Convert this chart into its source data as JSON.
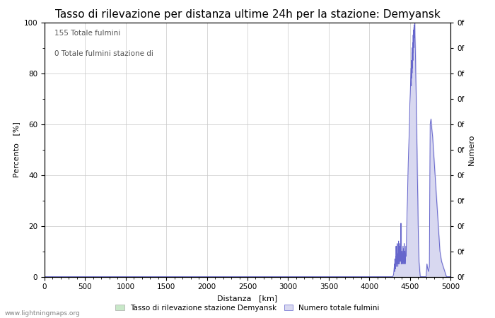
{
  "title": "Tasso di rilevazione per distanza ultime 24h per la stazione: Demyansk",
  "xlabel": "Distanza   [km]",
  "ylabel_left": "Percento   [%]",
  "ylabel_right": "Numero",
  "annotation_line1": "155 Totale fulmini",
  "annotation_line2": "0 Totale fulmini stazione di",
  "xlim": [
    0,
    5000
  ],
  "ylim_left": [
    0,
    100
  ],
  "xticks": [
    0,
    500,
    1000,
    1500,
    2000,
    2500,
    3000,
    3500,
    4000,
    4500,
    5000
  ],
  "yticks_left": [
    0,
    20,
    40,
    60,
    80,
    100
  ],
  "right_axis_labels": [
    "0f",
    "0f",
    "0f",
    "0f",
    "0f",
    "0f",
    "0f",
    "0f",
    "0f",
    "0f",
    "0f"
  ],
  "right_axis_positions": [
    0,
    10,
    20,
    30,
    40,
    50,
    60,
    70,
    80,
    90,
    100
  ],
  "watermark": "www.lightningmaps.org",
  "legend_green_label": "Tasso di rilevazione stazione Demyansk",
  "legend_blue_label": "Numero totale fulmini",
  "bg_color": "#ffffff",
  "grid_color": "#c8c8c8",
  "line_color": "#6666cc",
  "fill_color": "#d8d8f0",
  "green_fill_color": "#c8e8c8",
  "title_fontsize": 11,
  "label_fontsize": 8,
  "tick_fontsize": 7.5,
  "lightning_data_x": [
    0,
    4290,
    4290,
    4300,
    4305,
    4310,
    4312,
    4315,
    4318,
    4320,
    4322,
    4325,
    4328,
    4330,
    4332,
    4335,
    4338,
    4340,
    4342,
    4345,
    4348,
    4350,
    4352,
    4355,
    4358,
    4360,
    4362,
    4365,
    4368,
    4370,
    4372,
    4375,
    4378,
    4380,
    4382,
    4385,
    4388,
    4390,
    4392,
    4395,
    4398,
    4400,
    4402,
    4405,
    4408,
    4410,
    4412,
    4415,
    4418,
    4420,
    4422,
    4425,
    4428,
    4430,
    4432,
    4435,
    4438,
    4440,
    4442,
    4445,
    4450,
    4455,
    4460,
    4465,
    4470,
    4475,
    4480,
    4485,
    4490,
    4495,
    4500,
    4505,
    4510,
    4515,
    4518,
    4520,
    4522,
    4525,
    4528,
    4530,
    4532,
    4535,
    4538,
    4540,
    4542,
    4545,
    4548,
    4550,
    4552,
    4555,
    4558,
    4560,
    4562,
    4565,
    4568,
    4570,
    4572,
    4575,
    4578,
    4580,
    4582,
    4585,
    4588,
    4590,
    4592,
    4595,
    4598,
    4600,
    4602,
    4605,
    4608,
    4610,
    4612,
    4615,
    4618,
    4620,
    4622,
    4625,
    4628,
    4630,
    4632,
    4635,
    4638,
    4640,
    4642,
    4645,
    4648,
    4650,
    4652,
    4655,
    4658,
    4660,
    4662,
    4665,
    4668,
    4670,
    4672,
    4675,
    4678,
    4680,
    4682,
    4685,
    4688,
    4690,
    4692,
    4695,
    4698,
    4700,
    4710,
    4720,
    4730,
    4740,
    4750,
    4760,
    4770,
    4780,
    4790,
    4800,
    4810,
    4820,
    4830,
    4840,
    4850,
    4860,
    4870,
    4880,
    4890,
    4900,
    4910,
    4920,
    4930,
    4940,
    4950,
    4960,
    4970,
    4975,
    4978,
    4980,
    4982,
    4985,
    4988,
    4990,
    4992,
    4995,
    4998,
    5000,
    5000
  ],
  "lightning_data_y": [
    0,
    0,
    0,
    1,
    3,
    5,
    2,
    7,
    4,
    6,
    3,
    8,
    5,
    12,
    6,
    4,
    8,
    10,
    5,
    13,
    7,
    6,
    4,
    9,
    5,
    14,
    7,
    10,
    6,
    13,
    8,
    5,
    11,
    7,
    12,
    6,
    9,
    21,
    8,
    5,
    7,
    10,
    6,
    8,
    5,
    7,
    9,
    12,
    6,
    8,
    11,
    5,
    7,
    13,
    8,
    10,
    6,
    9,
    5,
    7,
    12,
    8,
    18,
    25,
    30,
    38,
    45,
    50,
    55,
    60,
    68,
    72,
    78,
    82,
    75,
    85,
    78,
    88,
    80,
    90,
    82,
    92,
    85,
    95,
    88,
    97,
    90,
    98,
    92,
    99,
    94,
    100,
    95,
    92,
    88,
    85,
    80,
    75,
    70,
    65,
    60,
    55,
    50,
    45,
    40,
    35,
    30,
    25,
    20,
    15,
    10,
    8,
    6,
    5,
    4,
    3,
    2,
    1,
    0,
    0,
    0,
    0,
    0,
    0,
    0,
    0,
    0,
    0,
    0,
    0,
    0,
    0,
    0,
    0,
    0,
    0,
    0,
    0,
    0,
    0,
    0,
    0,
    0,
    0,
    0,
    0,
    0,
    0,
    5,
    3,
    2,
    4,
    60,
    62,
    58,
    55,
    50,
    45,
    40,
    35,
    30,
    25,
    20,
    15,
    10,
    8,
    6,
    5,
    4,
    3,
    2,
    1,
    0,
    0,
    0,
    0,
    0,
    0,
    0,
    0,
    0,
    0,
    0,
    0,
    0,
    0,
    0
  ]
}
